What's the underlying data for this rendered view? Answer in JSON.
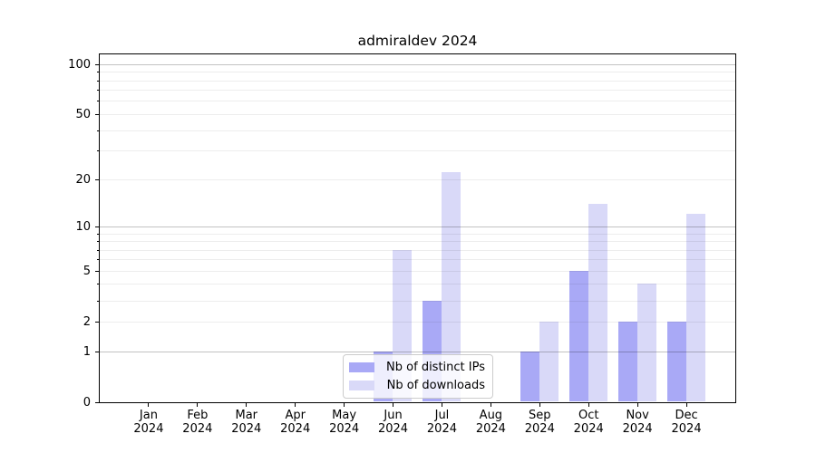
{
  "chart_data": {
    "type": "bar",
    "title": "admiraldev 2024",
    "categories": [
      "Jan 2024",
      "Feb 2024",
      "Mar 2024",
      "Apr 2024",
      "May 2024",
      "Jun 2024",
      "Jul 2024",
      "Aug 2024",
      "Sep 2024",
      "Oct 2024",
      "Nov 2024",
      "Dec 2024"
    ],
    "series": [
      {
        "name": "Nb of distinct IPs",
        "color": "#a9a9f6",
        "values": [
          0,
          0,
          0,
          0,
          0,
          1,
          3,
          0,
          1,
          5,
          2,
          2
        ]
      },
      {
        "name": "Nb of downloads",
        "color": "#d9d9f8",
        "values": [
          0,
          0,
          0,
          0,
          0,
          7,
          22,
          0,
          2,
          14,
          4,
          12
        ]
      }
    ],
    "yscale": "log10(1+y)",
    "yticks": [
      0,
      1,
      2,
      5,
      10,
      20,
      50,
      100
    ],
    "yticks_major_grid": [
      1,
      10,
      100
    ],
    "yticks_minor_grid": [
      2,
      3,
      4,
      5,
      6,
      7,
      8,
      9,
      20,
      30,
      40,
      50,
      60,
      70,
      80,
      90
    ],
    "ylim": [
      0,
      115
    ],
    "xlabel": "",
    "ylabel": "",
    "grid": "horizontal",
    "legend_position": "lower center",
    "background_color": "#ffffff",
    "text_color": "#000000"
  }
}
